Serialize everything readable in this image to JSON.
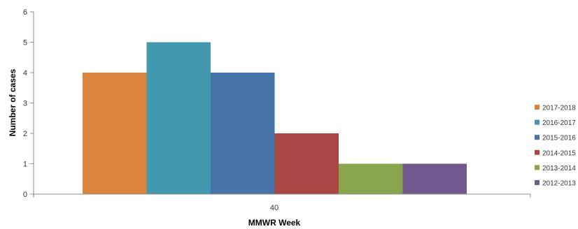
{
  "chart_data": {
    "type": "bar",
    "categories": [
      "40"
    ],
    "series": [
      {
        "name": "2017-2018",
        "values": [
          4
        ],
        "color": "#db843d"
      },
      {
        "name": "2016-2017",
        "values": [
          5
        ],
        "color": "#4198af"
      },
      {
        "name": "2015-2016",
        "values": [
          4
        ],
        "color": "#4572a7"
      },
      {
        "name": "2014-2015",
        "values": [
          2
        ],
        "color": "#aa4643"
      },
      {
        "name": "2013-2014",
        "values": [
          1
        ],
        "color": "#89a54e"
      },
      {
        "name": "2012-2013",
        "values": [
          1
        ],
        "color": "#71588f"
      }
    ],
    "xlabel": "MMWR Week",
    "ylabel": "Number of cases",
    "ylim": [
      0,
      6
    ],
    "yticks": [
      "0",
      "1",
      "2",
      "3",
      "4",
      "5",
      "6"
    ],
    "grid": false,
    "legend_position": "right"
  }
}
